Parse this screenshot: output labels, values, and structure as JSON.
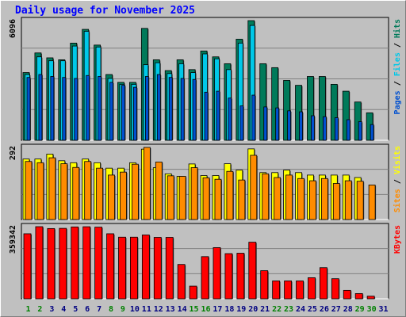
{
  "title": "Daily usage for November 2025",
  "colors": {
    "hits": "#007a5a",
    "files": "#00c8e8",
    "pages": "#0050d0",
    "visits": "#ffff00",
    "sites": "#ff8c00",
    "kbytes": "#ff0000",
    "slash": "#000000",
    "weekend": "#008000",
    "weekday": "#000080"
  },
  "panel_top": {
    "max_label": "6096",
    "right_label": {
      "pages": "Pages",
      "files": "Files",
      "hits": "Hits",
      "sep": " / "
    }
  },
  "panel_mid": {
    "max_label": "292",
    "right_label": {
      "sites": "Sites",
      "visits": "Visits",
      "sep": " / "
    }
  },
  "panel_bot": {
    "max_label": "359342",
    "right_label": {
      "kbytes": "KBytes"
    }
  },
  "chart_data": {
    "type": "bar",
    "title": "Daily usage for November 2025",
    "categories": [
      "1",
      "2",
      "3",
      "4",
      "5",
      "6",
      "7",
      "8",
      "9",
      "10",
      "11",
      "12",
      "13",
      "14",
      "15",
      "16",
      "17",
      "18",
      "19",
      "20",
      "21",
      "22",
      "23",
      "24",
      "25",
      "26",
      "27",
      "28",
      "29",
      "30",
      "31"
    ],
    "weekend_days": [
      "1",
      "2",
      "8",
      "9",
      "15",
      "16",
      "22",
      "23",
      "29",
      "30"
    ],
    "panels": [
      {
        "ymax": 6096,
        "series": [
          {
            "name": "Hits",
            "values": [
              3450,
              4450,
              4200,
              4100,
              4950,
              5650,
              4850,
              3350,
              2950,
              2950,
              5700,
              4100,
              3550,
              4100,
              3600,
              4550,
              4250,
              3900,
              5150,
              6096,
              3900,
              3700,
              3050,
              2800,
              3250,
              3250,
              2850,
              2500,
              1950,
              1400,
              null
            ]
          },
          {
            "name": "Files",
            "values": [
              3350,
              4250,
              4050,
              4050,
              4800,
              5550,
              4750,
              3150,
              2850,
              2850,
              3850,
              3950,
              3400,
              3900,
              3450,
              4400,
              4150,
              3600,
              4950,
              5850,
              null,
              null,
              null,
              null,
              null,
              null,
              null,
              null,
              null,
              null,
              null
            ]
          },
          {
            "name": "Pages",
            "values": [
              3200,
              3350,
              3250,
              3200,
              3150,
              3300,
              3250,
              2950,
              2800,
              2700,
              3250,
              3350,
              3200,
              3150,
              3100,
              2450,
              2500,
              2150,
              1750,
              2300,
              1700,
              1650,
              1500,
              1450,
              1250,
              1200,
              1150,
              1050,
              950,
              800,
              null
            ]
          }
        ]
      },
      {
        "ymax": 292,
        "series": [
          {
            "name": "Visits",
            "values": [
              245,
              245,
              265,
              238,
              230,
              245,
              230,
              208,
              208,
              230,
              285,
              210,
              185,
              175,
              225,
              178,
              178,
              226,
              200,
              286,
              190,
              190,
              200,
              190,
              180,
              180,
              180,
              180,
              170,
              null,
              null
            ]
          },
          {
            "name": "Sites",
            "values": [
              235,
              230,
              250,
              226,
              211,
              235,
              208,
              180,
              192,
              224,
              292,
              233,
              177,
              175,
              210,
              169,
              163,
              195,
              160,
              260,
              185,
              170,
              180,
              166,
              157,
              166,
              146,
              157,
              155,
              140,
              null
            ]
          }
        ]
      },
      {
        "ymax": 359342,
        "series": [
          {
            "name": "KBytes",
            "values": [
              324000,
              359342,
              350000,
              351000,
              358000,
              359000,
              357000,
              324000,
              307000,
              307000,
              318000,
              306000,
              306000,
              171000,
              63000,
              210000,
              255000,
              225000,
              227000,
              282000,
              140000,
              89000,
              89000,
              89000,
              105000,
              155000,
              100000,
              42000,
              26000,
              13000,
              null
            ]
          }
        ]
      }
    ]
  }
}
